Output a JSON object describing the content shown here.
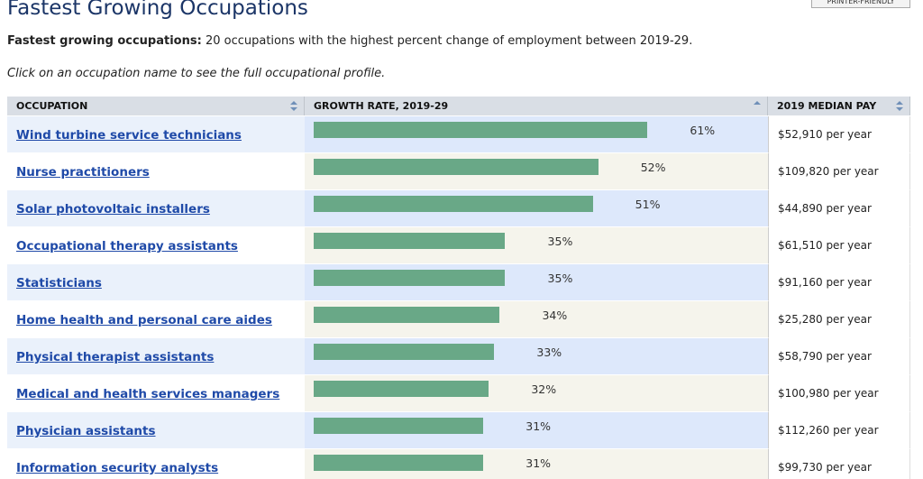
{
  "header": {
    "title": "Fastest Growing Occupations",
    "button": "PRINTER-FRIENDLY"
  },
  "intro": {
    "label": "Fastest growing occupations:",
    "text": "20 occupations with the highest percent change of employment between 2019-29."
  },
  "instruction": "Click on an occupation name to see the full occupational profile.",
  "table": {
    "columns": [
      "OCCUPATION",
      "GROWTH RATE, 2019-29",
      "2019 MEDIAN PAY"
    ],
    "rows": [
      {
        "occupation": "Wind turbine service technicians",
        "growth": 61,
        "growth_label": "61%",
        "pay": "$52,910 per year"
      },
      {
        "occupation": "Nurse practitioners",
        "growth": 52,
        "growth_label": "52%",
        "pay": "$109,820 per year"
      },
      {
        "occupation": "Solar photovoltaic installers",
        "growth": 51,
        "growth_label": "51%",
        "pay": "$44,890 per year"
      },
      {
        "occupation": "Occupational therapy assistants",
        "growth": 35,
        "growth_label": "35%",
        "pay": "$61,510 per year"
      },
      {
        "occupation": "Statisticians",
        "growth": 35,
        "growth_label": "35%",
        "pay": "$91,160 per year"
      },
      {
        "occupation": "Home health and personal care aides",
        "growth": 34,
        "growth_label": "34%",
        "pay": "$25,280 per year"
      },
      {
        "occupation": "Physical therapist assistants",
        "growth": 33,
        "growth_label": "33%",
        "pay": "$58,790 per year"
      },
      {
        "occupation": "Medical and health services managers",
        "growth": 32,
        "growth_label": "32%",
        "pay": "$100,980 per year"
      },
      {
        "occupation": "Physician assistants",
        "growth": 31,
        "growth_label": "31%",
        "pay": "$112,260 per year"
      },
      {
        "occupation": "Information security analysts",
        "growth": 31,
        "growth_label": "31%",
        "pay": "$99,730 per year"
      }
    ]
  }
}
